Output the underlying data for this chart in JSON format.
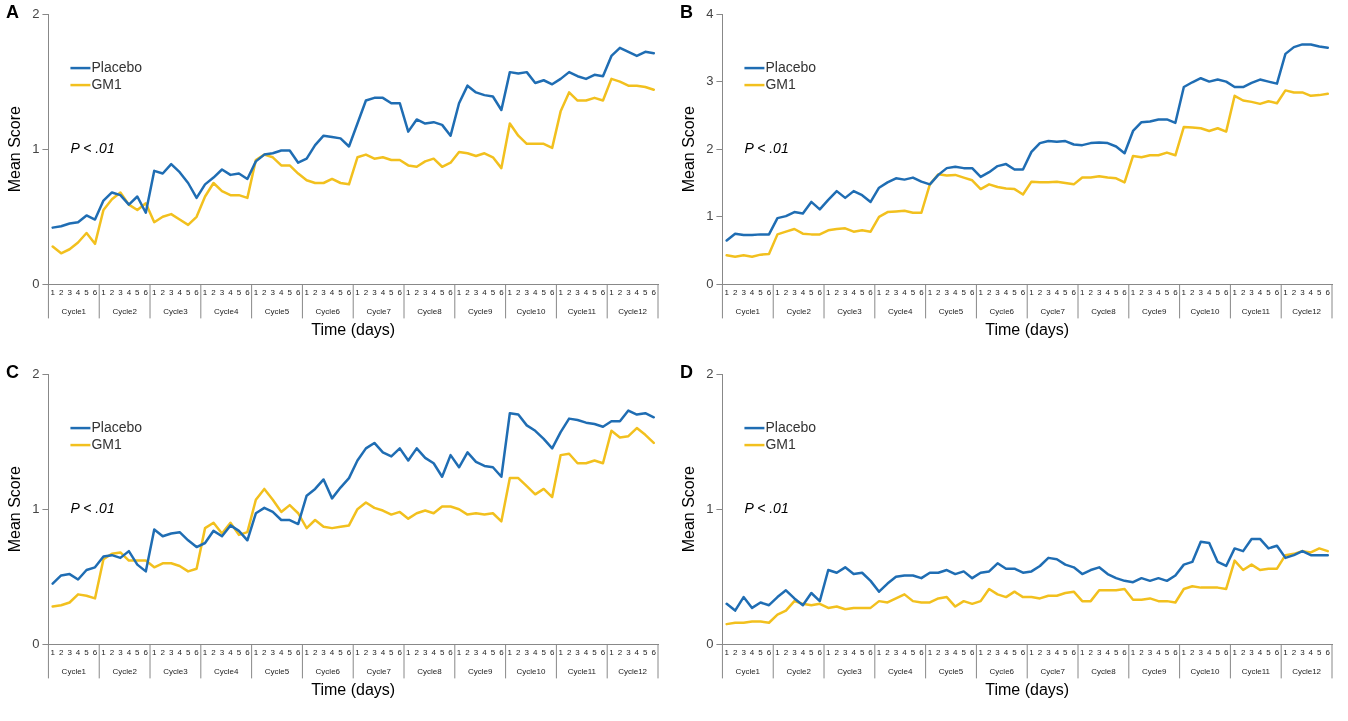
{
  "chart_data": [
    {
      "type": "line",
      "title": "A",
      "xlabel": "Time (days)",
      "ylabel": "Mean Score",
      "categories": [
        "1",
        "2",
        "3",
        "4",
        "5",
        "6",
        "1",
        "2",
        "3",
        "4",
        "5",
        "6",
        "1",
        "2",
        "3",
        "4",
        "5",
        "6",
        "1",
        "2",
        "3",
        "4",
        "5",
        "6",
        "1",
        "2",
        "3",
        "4",
        "5",
        "6",
        "1",
        "2",
        "3",
        "4",
        "5",
        "6",
        "1",
        "2",
        "3",
        "4",
        "5",
        "6",
        "1",
        "2",
        "3",
        "4",
        "5",
        "6",
        "1",
        "2",
        "3",
        "4",
        "5",
        "6",
        "1",
        "2",
        "3",
        "4",
        "5",
        "6",
        "1",
        "2",
        "3",
        "4",
        "5",
        "6",
        "1",
        "2",
        "3",
        "4",
        "5",
        "6"
      ],
      "ylim": [
        0,
        2
      ],
      "yticks": [
        0,
        1,
        2
      ],
      "legend": "top left",
      "annotations": [
        "P < .01",
        "Cycle1",
        "Cycle2",
        "Cycle3",
        "Cycle4",
        "Cycle5",
        "Cycle6",
        "Cycle7",
        "Cycle8",
        "Cycle9",
        "Cycle10",
        "Cycle11",
        "Cycle12"
      ],
      "series": [
        {
          "name": "Placebo",
          "color": "#1f6db3",
          "values": [
            0.42,
            0.43,
            0.45,
            0.46,
            0.51,
            0.48,
            0.62,
            0.68,
            0.66,
            0.59,
            0.65,
            0.53,
            0.84,
            0.82,
            0.89,
            0.83,
            0.75,
            0.64,
            0.74,
            0.79,
            0.85,
            0.81,
            0.82,
            0.78,
            0.91,
            0.96,
            0.97,
            0.99,
            0.99,
            0.9,
            0.93,
            1.03,
            1.1,
            1.09,
            1.08,
            1.02,
            1.19,
            1.36,
            1.38,
            1.38,
            1.34,
            1.34,
            1.13,
            1.22,
            1.19,
            1.2,
            1.18,
            1.1,
            1.34,
            1.47,
            1.42,
            1.4,
            1.39,
            1.29,
            1.57,
            1.56,
            1.57,
            1.49,
            1.51,
            1.48,
            1.52,
            1.57,
            1.54,
            1.52,
            1.55,
            1.54,
            1.69,
            1.75,
            1.72,
            1.69,
            1.72,
            1.71
          ]
        },
        {
          "name": "GM1",
          "color": "#f2c01e",
          "values": [
            0.28,
            0.23,
            0.26,
            0.31,
            0.38,
            0.3,
            0.55,
            0.63,
            0.68,
            0.59,
            0.55,
            0.6,
            0.46,
            0.5,
            0.52,
            0.48,
            0.44,
            0.5,
            0.65,
            0.75,
            0.69,
            0.66,
            0.66,
            0.64,
            0.92,
            0.96,
            0.94,
            0.88,
            0.88,
            0.82,
            0.77,
            0.75,
            0.75,
            0.78,
            0.75,
            0.74,
            0.94,
            0.96,
            0.93,
            0.94,
            0.92,
            0.92,
            0.88,
            0.87,
            0.91,
            0.93,
            0.87,
            0.9,
            0.98,
            0.97,
            0.95,
            0.97,
            0.94,
            0.86,
            1.19,
            1.1,
            1.04,
            1.04,
            1.04,
            1.01,
            1.28,
            1.42,
            1.36,
            1.36,
            1.38,
            1.36,
            1.52,
            1.5,
            1.47,
            1.47,
            1.46,
            1.44
          ]
        }
      ]
    },
    {
      "type": "line",
      "title": "B",
      "xlabel": "Time (days)",
      "ylabel": "Mean Score",
      "categories": [
        "1",
        "2",
        "3",
        "4",
        "5",
        "6",
        "1",
        "2",
        "3",
        "4",
        "5",
        "6",
        "1",
        "2",
        "3",
        "4",
        "5",
        "6",
        "1",
        "2",
        "3",
        "4",
        "5",
        "6",
        "1",
        "2",
        "3",
        "4",
        "5",
        "6",
        "1",
        "2",
        "3",
        "4",
        "5",
        "6",
        "1",
        "2",
        "3",
        "4",
        "5",
        "6",
        "1",
        "2",
        "3",
        "4",
        "5",
        "6",
        "1",
        "2",
        "3",
        "4",
        "5",
        "6",
        "1",
        "2",
        "3",
        "4",
        "5",
        "6",
        "1",
        "2",
        "3",
        "4",
        "5",
        "6",
        "1",
        "2",
        "3",
        "4",
        "5",
        "6"
      ],
      "ylim": [
        0,
        4
      ],
      "yticks": [
        0,
        1,
        2,
        3,
        4
      ],
      "legend": "top left",
      "annotations": [
        "P < .01",
        "Cycle1",
        "Cycle2",
        "Cycle3",
        "Cycle4",
        "Cycle5",
        "Cycle6",
        "Cycle7",
        "Cycle8",
        "Cycle9",
        "Cycle10",
        "Cycle11",
        "Cycle12"
      ],
      "series": [
        {
          "name": "Placebo",
          "color": "#1f6db3",
          "values": [
            0.65,
            0.75,
            0.73,
            0.73,
            0.74,
            0.74,
            0.98,
            1.01,
            1.07,
            1.05,
            1.22,
            1.11,
            1.25,
            1.38,
            1.28,
            1.38,
            1.32,
            1.22,
            1.43,
            1.51,
            1.57,
            1.55,
            1.58,
            1.52,
            1.48,
            1.62,
            1.72,
            1.74,
            1.72,
            1.72,
            1.59,
            1.66,
            1.75,
            1.78,
            1.7,
            1.7,
            1.96,
            2.09,
            2.12,
            2.11,
            2.12,
            2.07,
            2.06,
            2.09,
            2.1,
            2.09,
            2.04,
            1.94,
            2.27,
            2.4,
            2.41,
            2.44,
            2.44,
            2.39,
            2.92,
            2.99,
            3.05,
            3.0,
            3.03,
            3.0,
            2.92,
            2.92,
            2.98,
            3.03,
            3.0,
            2.97,
            3.41,
            3.51,
            3.55,
            3.55,
            3.52,
            3.5
          ]
        },
        {
          "name": "GM1",
          "color": "#f2c01e",
          "values": [
            0.43,
            0.41,
            0.43,
            0.41,
            0.44,
            0.45,
            0.74,
            0.78,
            0.82,
            0.75,
            0.74,
            0.74,
            0.8,
            0.82,
            0.83,
            0.78,
            0.8,
            0.78,
            1.0,
            1.07,
            1.08,
            1.09,
            1.06,
            1.06,
            1.48,
            1.63,
            1.61,
            1.62,
            1.58,
            1.54,
            1.41,
            1.48,
            1.44,
            1.42,
            1.41,
            1.33,
            1.52,
            1.51,
            1.51,
            1.52,
            1.5,
            1.48,
            1.58,
            1.58,
            1.6,
            1.58,
            1.57,
            1.51,
            1.9,
            1.88,
            1.91,
            1.91,
            1.95,
            1.91,
            2.33,
            2.32,
            2.31,
            2.27,
            2.31,
            2.26,
            2.79,
            2.72,
            2.7,
            2.67,
            2.71,
            2.68,
            2.87,
            2.84,
            2.84,
            2.79,
            2.8,
            2.82
          ]
        }
      ]
    },
    {
      "type": "line",
      "title": "C",
      "xlabel": "Time (days)",
      "ylabel": "Mean Score",
      "categories": [
        "1",
        "2",
        "3",
        "4",
        "5",
        "6",
        "1",
        "2",
        "3",
        "4",
        "5",
        "6",
        "1",
        "2",
        "3",
        "4",
        "5",
        "6",
        "1",
        "2",
        "3",
        "4",
        "5",
        "6",
        "1",
        "2",
        "3",
        "4",
        "5",
        "6",
        "1",
        "2",
        "3",
        "4",
        "5",
        "6",
        "1",
        "2",
        "3",
        "4",
        "5",
        "6",
        "1",
        "2",
        "3",
        "4",
        "5",
        "6",
        "1",
        "2",
        "3",
        "4",
        "5",
        "6",
        "1",
        "2",
        "3",
        "4",
        "5",
        "6",
        "1",
        "2",
        "3",
        "4",
        "5",
        "6",
        "1",
        "2",
        "3",
        "4",
        "5",
        "6"
      ],
      "ylim": [
        0,
        2
      ],
      "yticks": [
        0,
        1,
        2
      ],
      "legend": "top left",
      "annotations": [
        "P < .01",
        "Cycle1",
        "Cycle2",
        "Cycle3",
        "Cycle4",
        "Cycle5",
        "Cycle6",
        "Cycle7",
        "Cycle8",
        "Cycle9",
        "Cycle10",
        "Cycle11",
        "Cycle12"
      ],
      "series": [
        {
          "name": "Placebo",
          "color": "#1f6db3",
          "values": [
            0.45,
            0.51,
            0.52,
            0.48,
            0.55,
            0.57,
            0.65,
            0.66,
            0.64,
            0.69,
            0.59,
            0.54,
            0.85,
            0.8,
            0.82,
            0.83,
            0.77,
            0.72,
            0.75,
            0.84,
            0.8,
            0.88,
            0.84,
            0.77,
            0.97,
            1.01,
            0.98,
            0.92,
            0.92,
            0.89,
            1.1,
            1.15,
            1.22,
            1.08,
            1.16,
            1.23,
            1.36,
            1.45,
            1.49,
            1.42,
            1.39,
            1.45,
            1.36,
            1.45,
            1.38,
            1.34,
            1.24,
            1.4,
            1.31,
            1.42,
            1.35,
            1.32,
            1.31,
            1.24,
            1.71,
            1.7,
            1.62,
            1.58,
            1.52,
            1.45,
            1.57,
            1.67,
            1.66,
            1.64,
            1.63,
            1.61,
            1.65,
            1.65,
            1.73,
            1.7,
            1.71,
            1.68
          ]
        },
        {
          "name": "GM1",
          "color": "#f2c01e",
          "values": [
            0.28,
            0.29,
            0.31,
            0.37,
            0.36,
            0.34,
            0.63,
            0.67,
            0.68,
            0.62,
            0.62,
            0.62,
            0.57,
            0.6,
            0.6,
            0.58,
            0.54,
            0.56,
            0.86,
            0.9,
            0.82,
            0.9,
            0.81,
            0.83,
            1.07,
            1.15,
            1.07,
            0.98,
            1.03,
            0.97,
            0.86,
            0.92,
            0.87,
            0.86,
            0.87,
            0.88,
            1.0,
            1.05,
            1.01,
            0.99,
            0.96,
            0.98,
            0.93,
            0.97,
            0.99,
            0.97,
            1.02,
            1.02,
            1.0,
            0.96,
            0.97,
            0.96,
            0.97,
            0.91,
            1.23,
            1.23,
            1.17,
            1.11,
            1.15,
            1.09,
            1.4,
            1.41,
            1.34,
            1.34,
            1.36,
            1.34,
            1.58,
            1.53,
            1.54,
            1.6,
            1.55,
            1.49
          ]
        }
      ]
    },
    {
      "type": "line",
      "title": "D",
      "xlabel": "Time (days)",
      "ylabel": "Mean Score",
      "categories": [
        "1",
        "2",
        "3",
        "4",
        "5",
        "6",
        "1",
        "2",
        "3",
        "4",
        "5",
        "6",
        "1",
        "2",
        "3",
        "4",
        "5",
        "6",
        "1",
        "2",
        "3",
        "4",
        "5",
        "6",
        "1",
        "2",
        "3",
        "4",
        "5",
        "6",
        "1",
        "2",
        "3",
        "4",
        "5",
        "6",
        "1",
        "2",
        "3",
        "4",
        "5",
        "6",
        "1",
        "2",
        "3",
        "4",
        "5",
        "6",
        "1",
        "2",
        "3",
        "4",
        "5",
        "6",
        "1",
        "2",
        "3",
        "4",
        "5",
        "6",
        "1",
        "2",
        "3",
        "4",
        "5",
        "6",
        "1",
        "2",
        "3",
        "4",
        "5",
        "6"
      ],
      "ylim": [
        0,
        2
      ],
      "yticks": [
        0,
        1,
        2
      ],
      "legend": "top left",
      "annotations": [
        "P < .01",
        "Cycle1",
        "Cycle2",
        "Cycle3",
        "Cycle4",
        "Cycle5",
        "Cycle6",
        "Cycle7",
        "Cycle8",
        "Cycle9",
        "Cycle10",
        "Cycle11",
        "Cycle12"
      ],
      "series": [
        {
          "name": "Placebo",
          "color": "#1f6db3",
          "values": [
            0.3,
            0.25,
            0.35,
            0.27,
            0.31,
            0.29,
            0.35,
            0.4,
            0.34,
            0.29,
            0.38,
            0.32,
            0.55,
            0.53,
            0.57,
            0.52,
            0.53,
            0.47,
            0.39,
            0.45,
            0.5,
            0.51,
            0.51,
            0.49,
            0.53,
            0.53,
            0.55,
            0.52,
            0.54,
            0.49,
            0.53,
            0.54,
            0.6,
            0.56,
            0.56,
            0.53,
            0.54,
            0.58,
            0.64,
            0.63,
            0.59,
            0.57,
            0.52,
            0.55,
            0.57,
            0.52,
            0.49,
            0.47,
            0.46,
            0.49,
            0.47,
            0.49,
            0.47,
            0.51,
            0.59,
            0.61,
            0.76,
            0.75,
            0.61,
            0.58,
            0.71,
            0.69,
            0.78,
            0.78,
            0.71,
            0.73,
            0.64,
            0.66,
            0.69,
            0.66,
            0.66,
            0.66
          ]
        },
        {
          "name": "GM1",
          "color": "#f2c01e",
          "values": [
            0.15,
            0.16,
            0.16,
            0.17,
            0.17,
            0.16,
            0.22,
            0.25,
            0.32,
            0.3,
            0.29,
            0.3,
            0.27,
            0.28,
            0.26,
            0.27,
            0.27,
            0.27,
            0.32,
            0.31,
            0.34,
            0.37,
            0.32,
            0.31,
            0.31,
            0.34,
            0.35,
            0.28,
            0.32,
            0.3,
            0.32,
            0.41,
            0.37,
            0.35,
            0.39,
            0.35,
            0.35,
            0.34,
            0.36,
            0.36,
            0.38,
            0.39,
            0.32,
            0.32,
            0.4,
            0.4,
            0.4,
            0.41,
            0.33,
            0.33,
            0.34,
            0.32,
            0.32,
            0.31,
            0.41,
            0.43,
            0.42,
            0.42,
            0.42,
            0.41,
            0.62,
            0.55,
            0.59,
            0.55,
            0.56,
            0.56,
            0.66,
            0.67,
            0.69,
            0.68,
            0.71,
            0.69
          ]
        }
      ]
    }
  ]
}
